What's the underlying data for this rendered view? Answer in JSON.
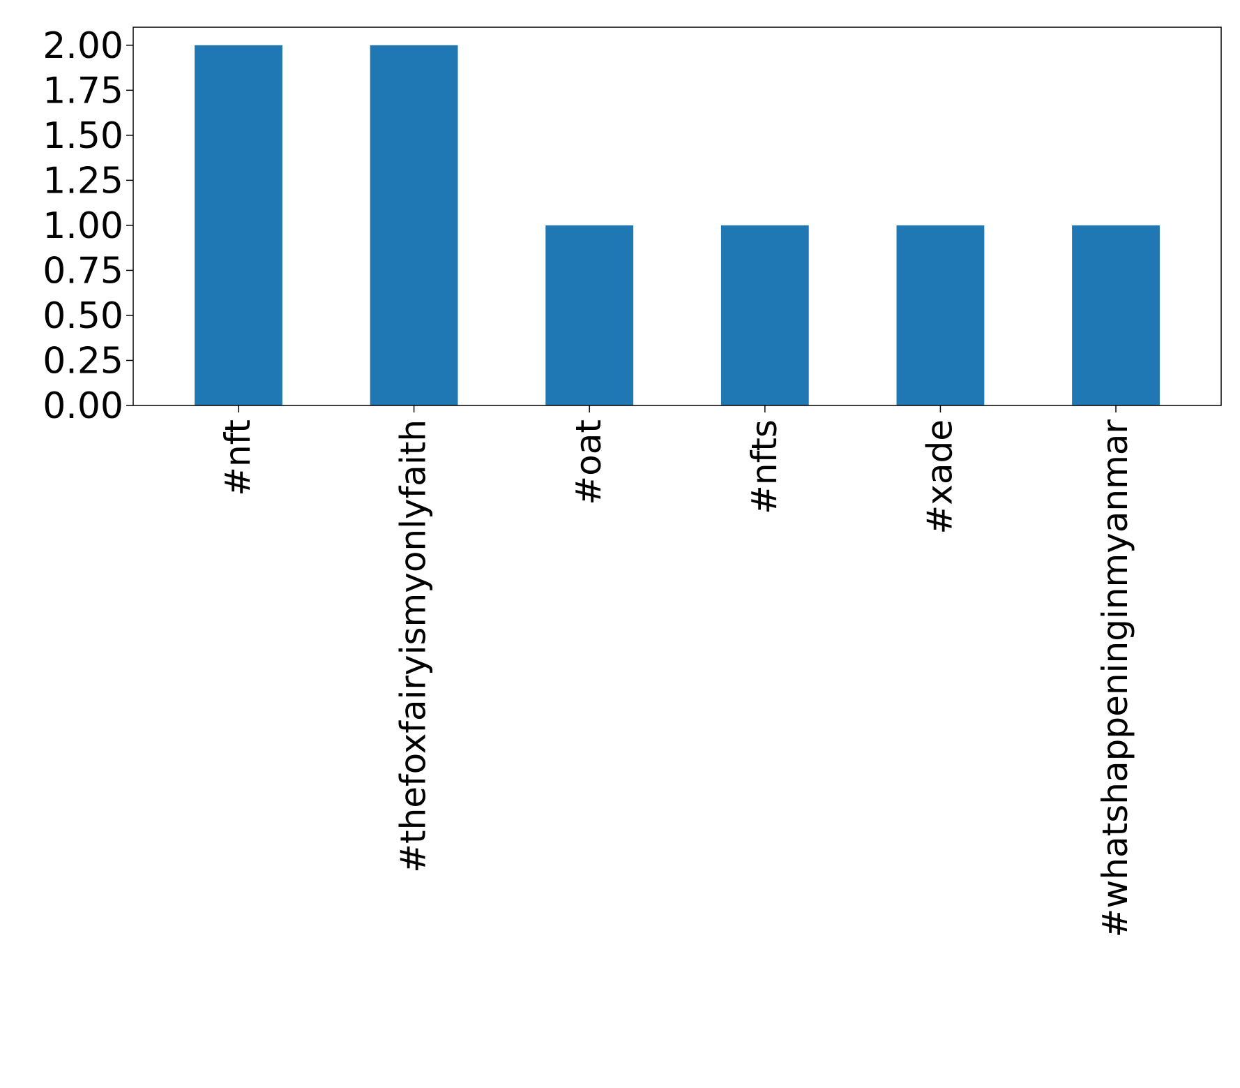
{
  "chart_data": {
    "type": "bar",
    "title": "",
    "xlabel": "",
    "ylabel": "",
    "categories": [
      "#nft",
      "#thefoxfairyismyonlyfaith",
      "#oat",
      "#nfts",
      "#xade",
      "#whatshappeninginmyanmar"
    ],
    "values": [
      2,
      2,
      1,
      1,
      1,
      1
    ],
    "ylim": [
      0,
      2.1
    ],
    "yticks": [
      0,
      0.25,
      0.5,
      0.75,
      1.0,
      1.25,
      1.5,
      1.75,
      2.0
    ],
    "ytick_labels": [
      "0.00",
      "0.25",
      "0.50",
      "0.75",
      "1.00",
      "1.25",
      "1.50",
      "1.75",
      "2.00"
    ],
    "bar_color": "#1f77b4",
    "grid": false,
    "legend": "none",
    "xtick_rotation": "vertical"
  }
}
